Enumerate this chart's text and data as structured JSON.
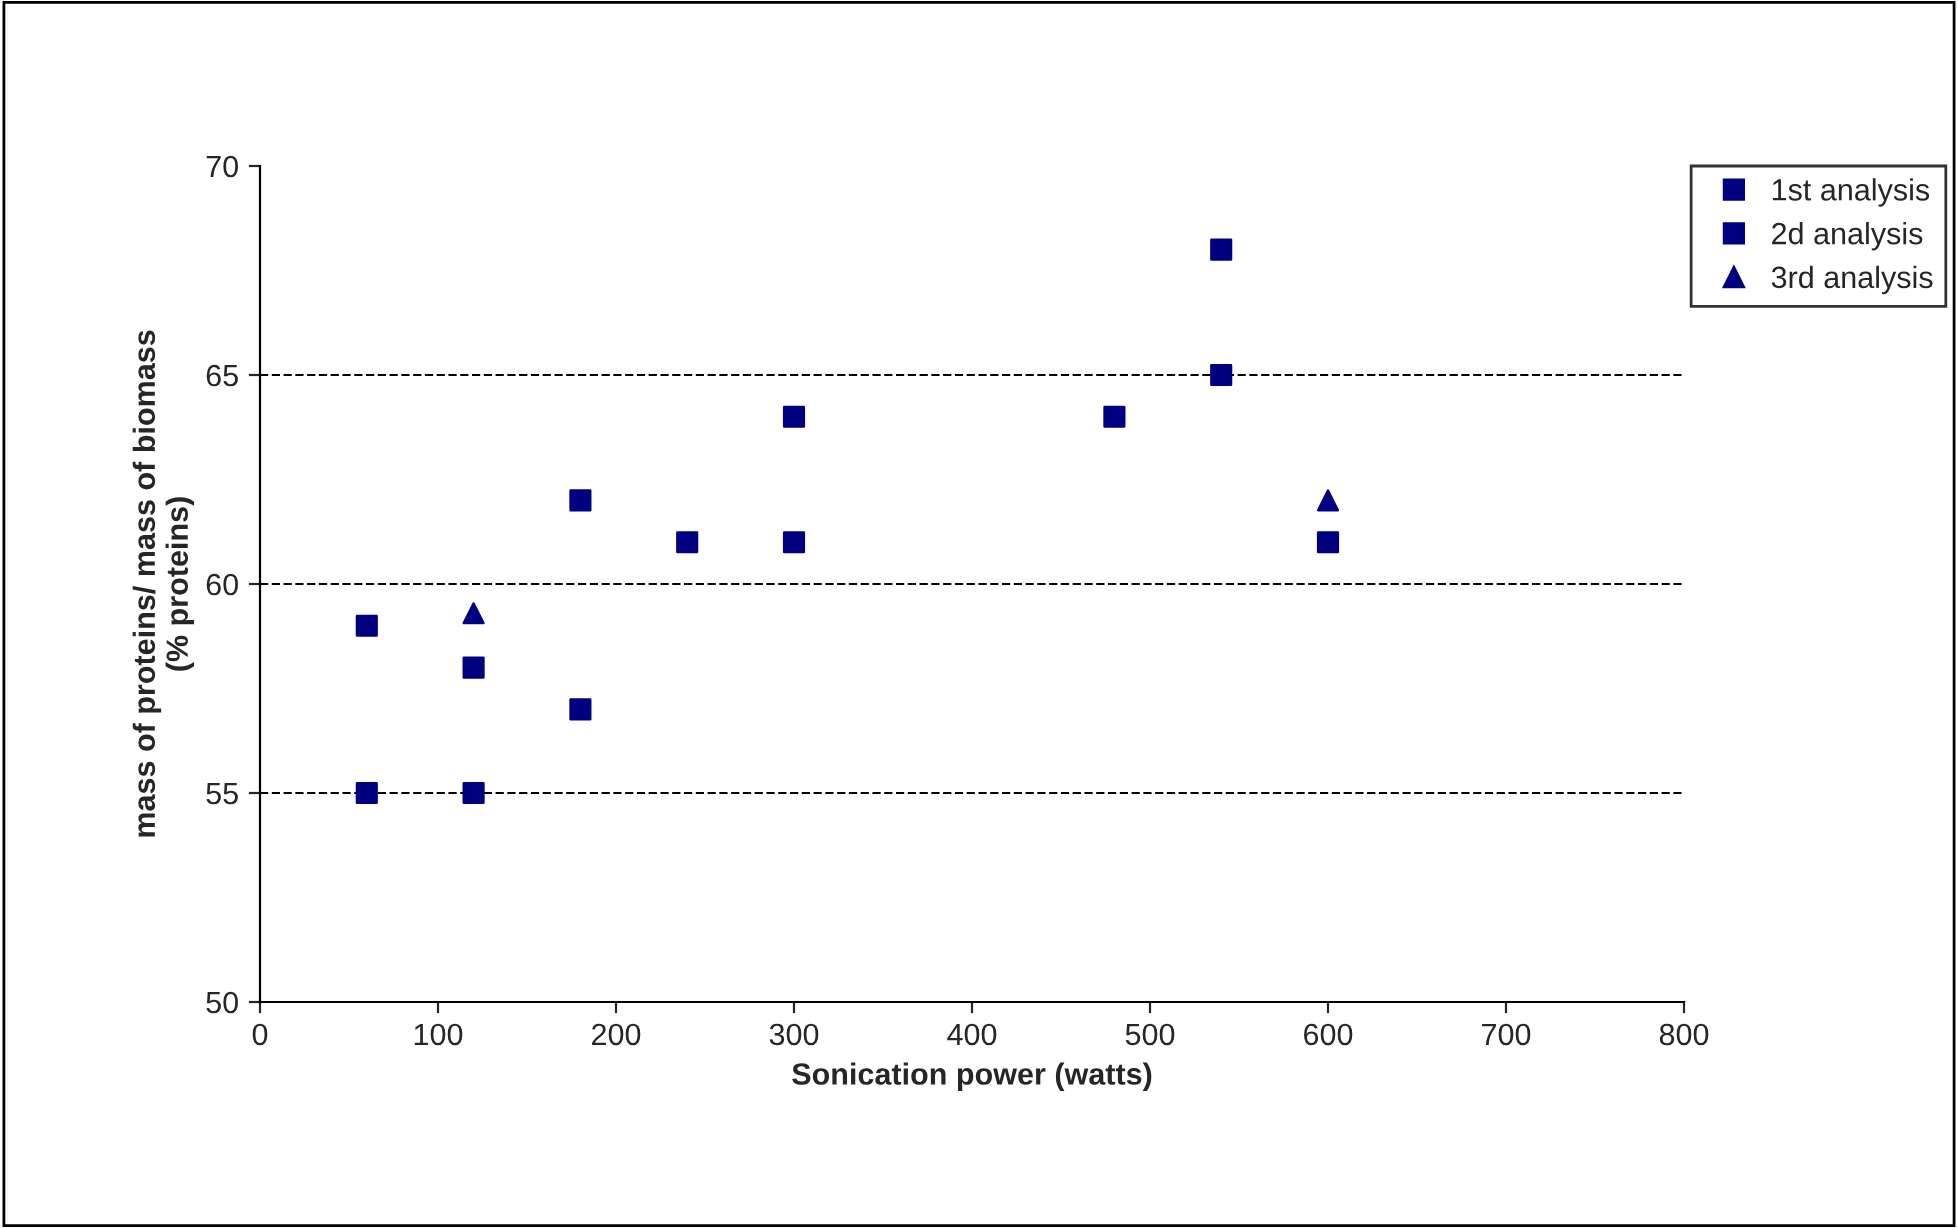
{
  "chart_data": {
    "type": "scatter",
    "xlabel": "Sonication power (watts)",
    "ylabel": "mass of proteins/ mass of biomass\n(% proteins)",
    "xlim": [
      0,
      800
    ],
    "xticks": [
      0,
      100,
      200,
      300,
      400,
      500,
      600,
      700,
      800
    ],
    "ylim": [
      50,
      70
    ],
    "yticks": [
      50,
      55,
      60,
      65,
      70
    ],
    "grid": "y",
    "legend": "top right",
    "series": [
      {
        "name": "1st analysis",
        "color": "#000080",
        "marker": "square",
        "x": [
          60,
          120,
          180,
          300,
          540
        ],
        "values": [
          59,
          58,
          62,
          61,
          65
        ]
      },
      {
        "name": "2d analysis",
        "color": "#000080",
        "marker": "square",
        "x": [
          60,
          120,
          180,
          240,
          300,
          480,
          540,
          600
        ],
        "values": [
          55,
          55,
          57,
          61,
          64,
          64,
          68,
          61
        ]
      },
      {
        "name": "3rd analysis",
        "color": "#000080",
        "marker": "triangle",
        "x": [
          120,
          600
        ],
        "values": [
          59.3,
          62
        ]
      }
    ]
  }
}
